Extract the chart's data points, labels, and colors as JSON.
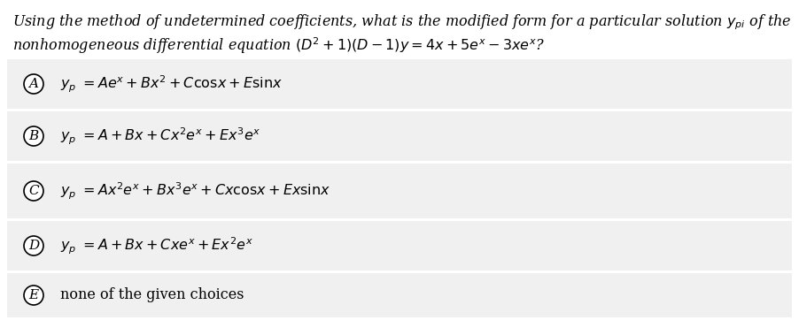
{
  "bg_color": "#ffffff",
  "box_bg": "#f0f0f0",
  "separator_color": "#ffffff",
  "question_line1": "Using the method of undetermined coefficients, what is the modified form for a particular solution $y_{pi}$ of the",
  "question_line2": "nonhomogeneous differential equation $(D^2+1)(D-1)y = 4x + 5e^x - 3xe^x$?",
  "choices": [
    {
      "label": "A",
      "text": "$y_p\\ =Ae^x+ Bx^2+ C\\mathrm{cos}x+ E\\mathrm{sin}x$"
    },
    {
      "label": "B",
      "text": "$y_p\\ =A + Bx + Cx^2e^x + Ex^3e^x$"
    },
    {
      "label": "C",
      "text": "$y_p\\ =Ax^2e^x + Bx^3e^x + Cx\\mathrm{cos}x + Ex\\mathrm{sin}x$"
    },
    {
      "label": "D",
      "text": "$y_p\\ =A + Bx + Cxe^x + Ex^2e^x$"
    },
    {
      "label": "E",
      "text": "none of the given choices"
    }
  ],
  "q_fontsize": 11.5,
  "choice_fontsize": 11.5,
  "label_fontsize": 11
}
